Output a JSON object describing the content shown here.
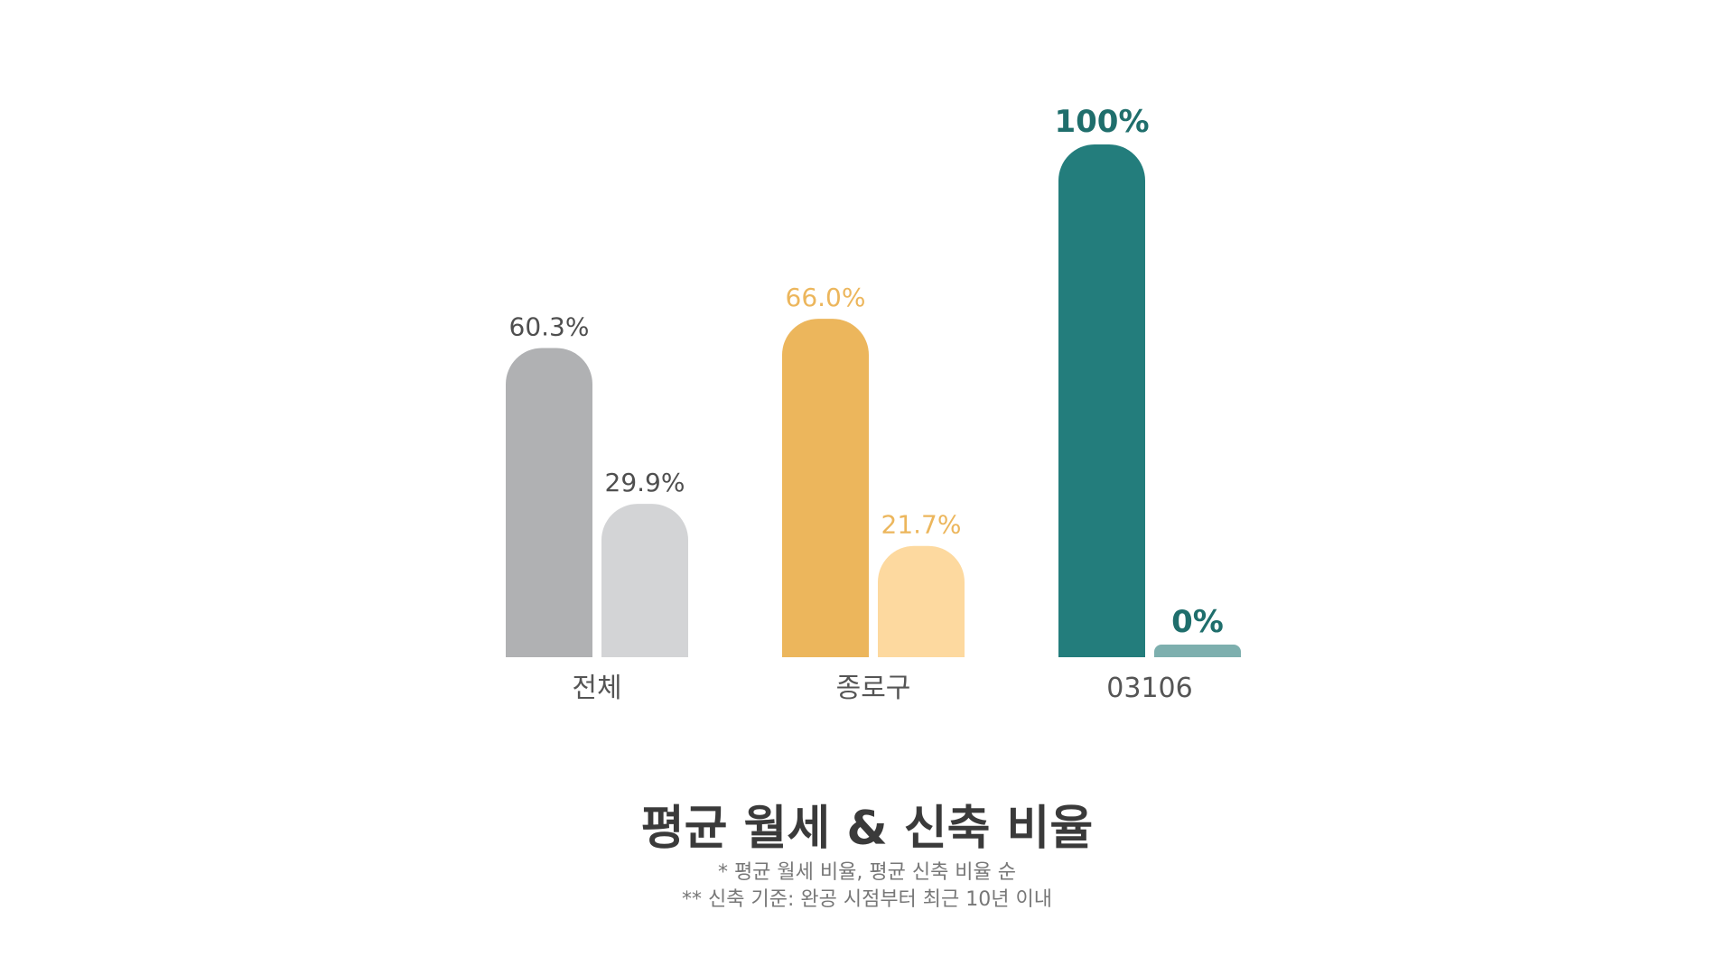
{
  "chart_data": {
    "type": "bar",
    "categories": [
      "전체",
      "종로구",
      "03106"
    ],
    "series": [
      {
        "values": [
          60.3,
          66.0,
          100
        ]
      },
      {
        "values": [
          29.9,
          21.7,
          0
        ]
      }
    ],
    "value_labels": [
      [
        "60.3%",
        "29.9%"
      ],
      [
        "66.0%",
        "21.7%"
      ],
      [
        "100%",
        "0%"
      ]
    ],
    "bar_colors": [
      [
        "#b0b1b3",
        "#d3d4d6"
      ],
      [
        "#ecb65c",
        "#fdd99f"
      ],
      [
        "#237d7c",
        "#7dafae"
      ]
    ],
    "label_colors": [
      [
        "#4f4f4f",
        "#4f4f4f"
      ],
      [
        "#ecb65c",
        "#ecb65c"
      ],
      [
        "#1f6e6c",
        "#1f6e6c"
      ]
    ],
    "label_bold": [
      false,
      false,
      true
    ],
    "category_label_color": "#555555",
    "ylim": [
      0,
      100
    ],
    "grid": false,
    "legend": "none",
    "title": "평균 월세 & 신축 비율",
    "notes": [
      "* 평균 월세 비율, 평균 신축 비율 순",
      "** 신축 기준: 완공 시점부터 최근 10년 이내"
    ]
  }
}
